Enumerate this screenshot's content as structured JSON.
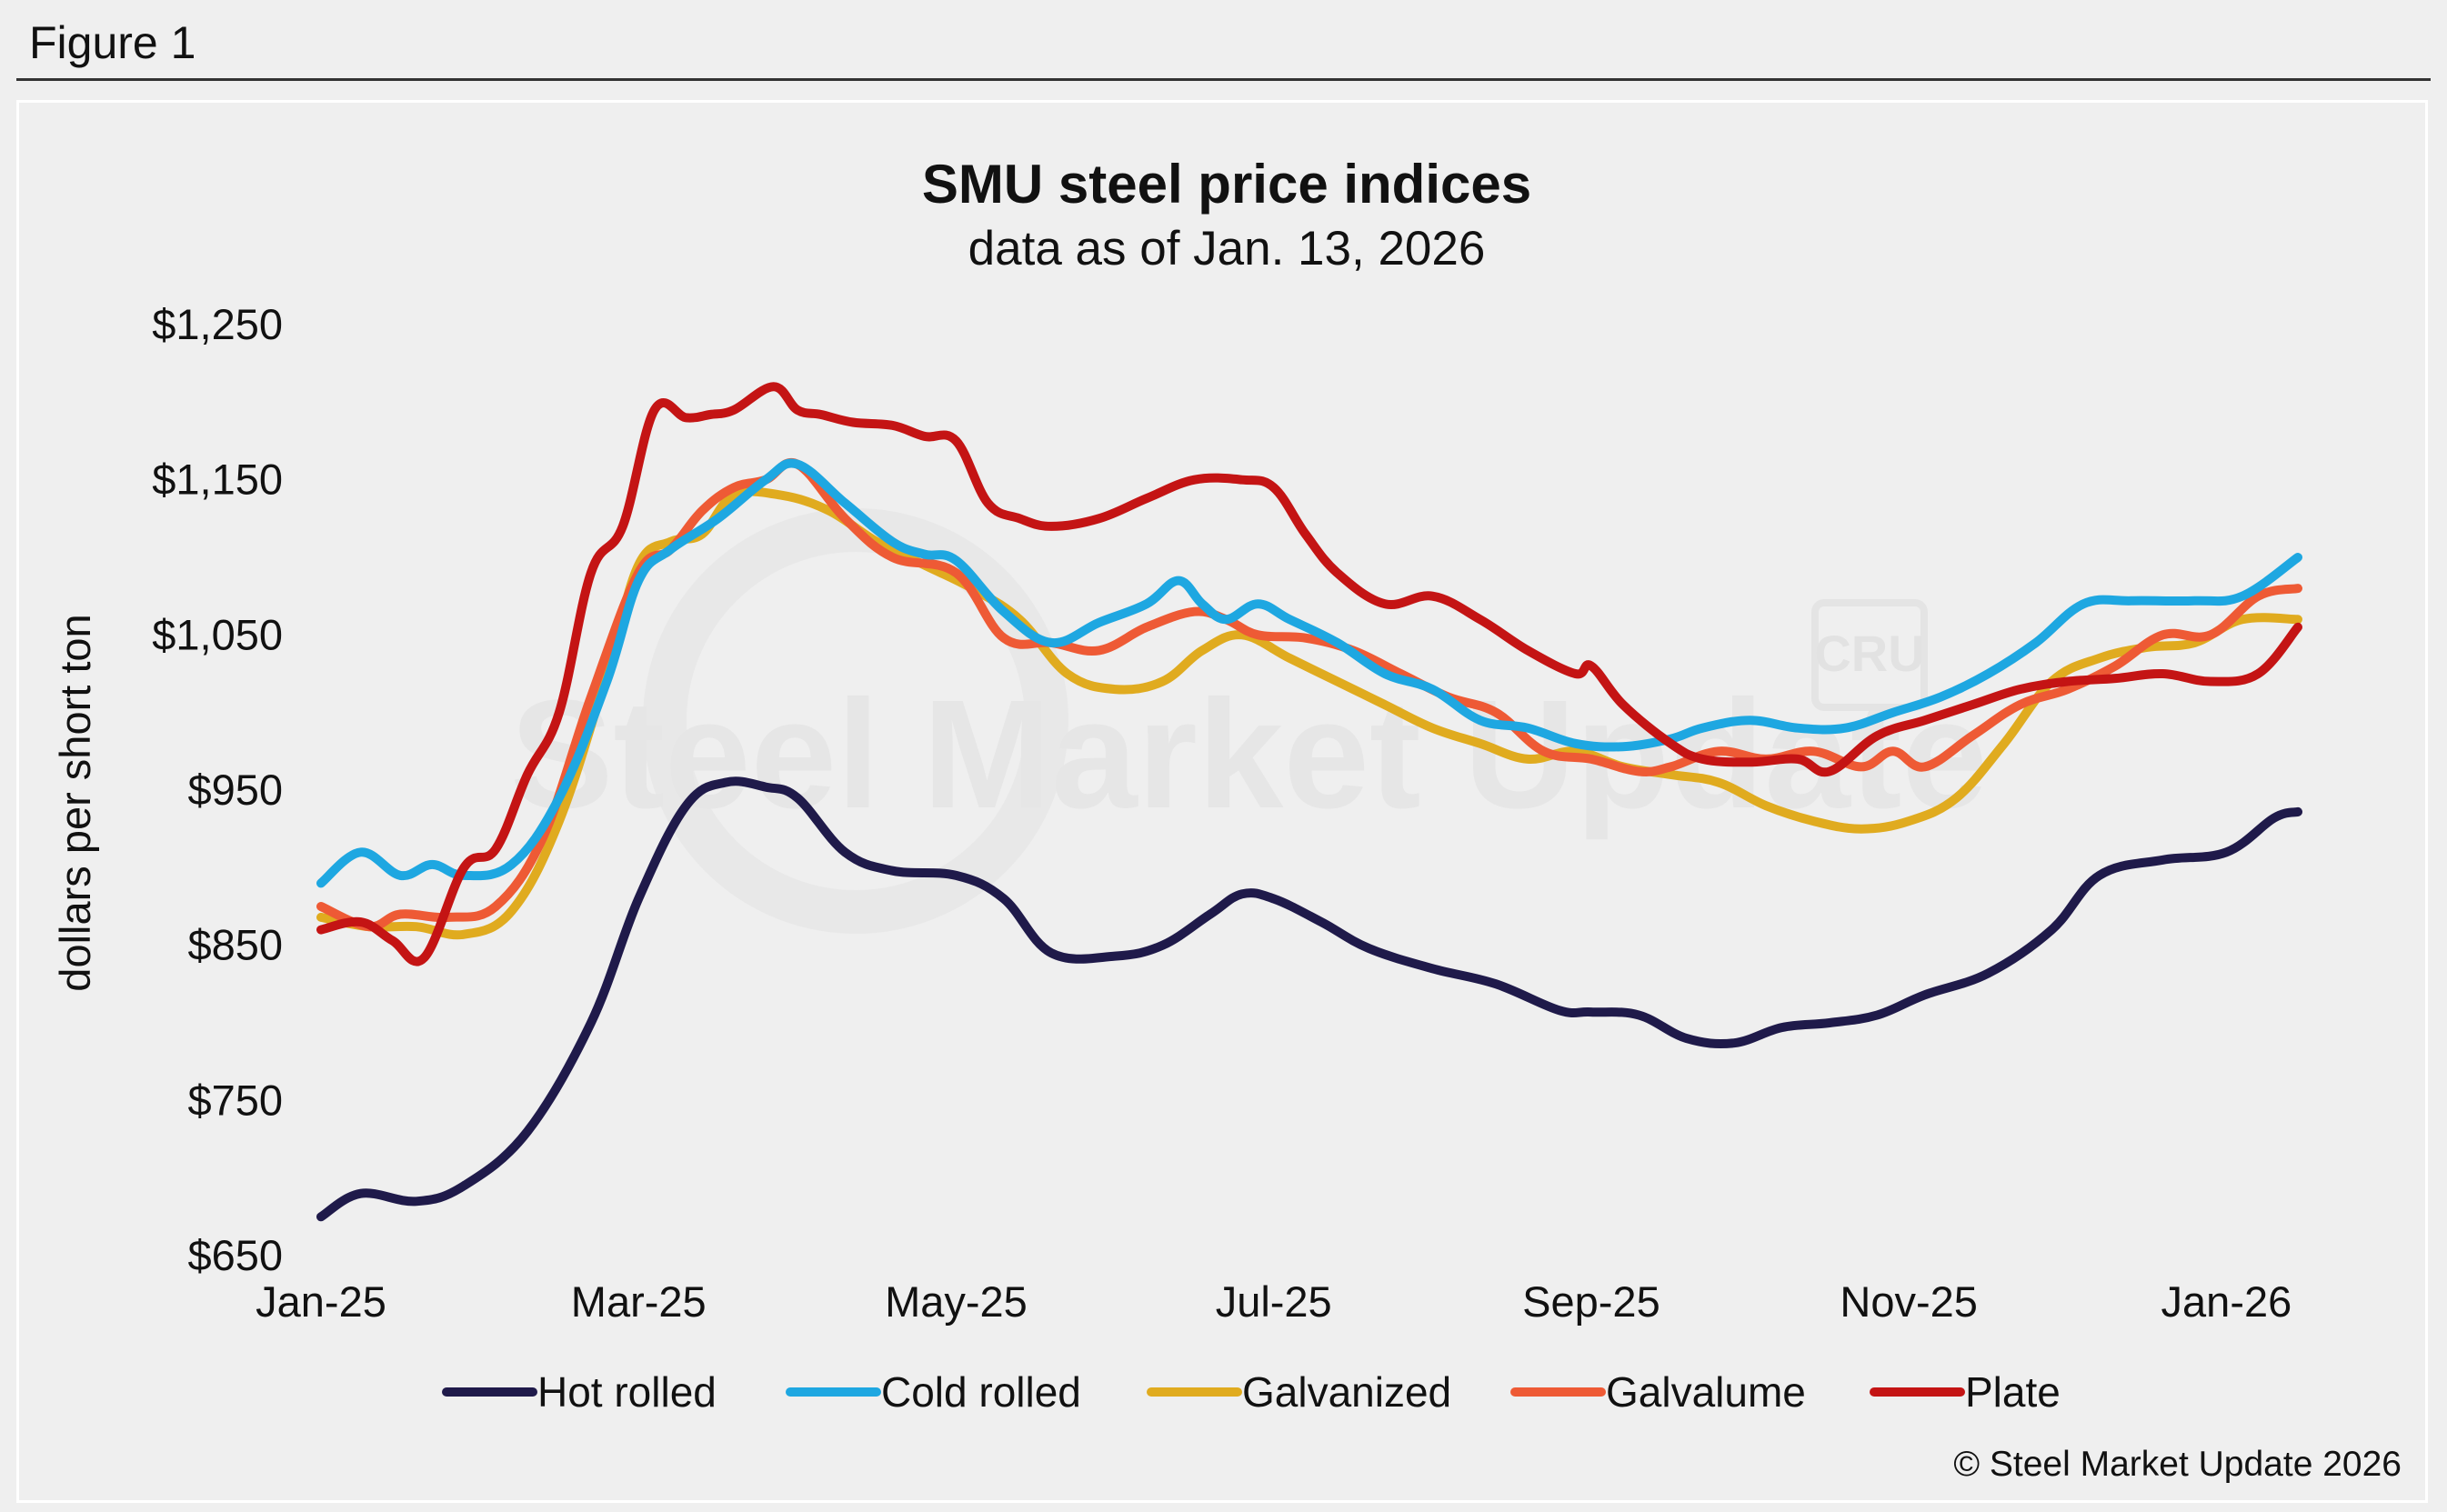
{
  "figure_label": "Figure 1",
  "copyright": "© Steel Market Update 2026",
  "watermark": {
    "brand": "Steel Market Update",
    "logo": "CRU"
  },
  "chart_data": {
    "type": "line",
    "title": "SMU steel price indices",
    "subtitle": "data as of Jan. 13, 2026",
    "ylabel": "dollars per short ton",
    "xlabel": "",
    "ylim": [
      650,
      1250
    ],
    "yticks": [
      650,
      750,
      850,
      950,
      1050,
      1150,
      1250
    ],
    "ytick_labels": [
      "$650",
      "$750",
      "$850",
      "$950",
      "$1,050",
      "$1,150",
      "$1,250"
    ],
    "x_tick_labels": [
      "Jan-25",
      "Mar-25",
      "May-25",
      "Jul-25",
      "Sep-25",
      "Nov-25",
      "Jan-26"
    ],
    "x_tick_positions": [
      0,
      2,
      4,
      6,
      8,
      10,
      12
    ],
    "x_unit": "months since Jan-25",
    "xlim": [
      0,
      12.45
    ],
    "legend_position": "bottom",
    "grid": false,
    "series": [
      {
        "name": "Hot rolled",
        "color": "#1f1a4a",
        "x": [
          0,
          0.25,
          0.6,
          0.9,
          1.3,
          1.7,
          2.0,
          2.3,
          2.55,
          2.8,
          3.0,
          3.3,
          3.6,
          4.0,
          4.3,
          4.6,
          5.0,
          5.3,
          5.6,
          5.8,
          6.0,
          6.3,
          6.6,
          7.0,
          7.4,
          7.8,
          8.0,
          8.3,
          8.6,
          8.9,
          9.2,
          9.5,
          9.8,
          10.1,
          10.5,
          10.9,
          11.2,
          11.6,
          12.0,
          12.3,
          12.45
        ],
        "values": [
          675,
          690,
          685,
          695,
          730,
          800,
          880,
          940,
          955,
          952,
          945,
          910,
          898,
          895,
          880,
          845,
          843,
          850,
          870,
          883,
          880,
          865,
          848,
          835,
          825,
          808,
          807,
          805,
          790,
          787,
          797,
          800,
          805,
          818,
          832,
          860,
          895,
          905,
          910,
          932,
          936
        ]
      },
      {
        "name": "Cold rolled",
        "color": "#1ea7e1",
        "x": [
          0,
          0.25,
          0.5,
          0.7,
          0.9,
          1.2,
          1.5,
          1.8,
          2.0,
          2.2,
          2.5,
          2.8,
          3.0,
          3.3,
          3.6,
          3.8,
          4.0,
          4.3,
          4.6,
          4.9,
          5.2,
          5.4,
          5.55,
          5.7,
          5.9,
          6.1,
          6.4,
          6.7,
          7.0,
          7.3,
          7.6,
          7.9,
          8.2,
          8.5,
          8.7,
          9.0,
          9.3,
          9.6,
          9.9,
          10.2,
          10.5,
          10.8,
          11.1,
          11.4,
          11.8,
          12.1,
          12.45
        ],
        "values": [
          890,
          910,
          895,
          902,
          895,
          902,
          945,
          1020,
          1085,
          1105,
          1125,
          1150,
          1160,
          1135,
          1110,
          1102,
          1098,
          1065,
          1045,
          1058,
          1070,
          1085,
          1070,
          1060,
          1070,
          1060,
          1045,
          1025,
          1015,
          995,
          990,
          980,
          978,
          983,
          990,
          995,
          990,
          990,
          1000,
          1010,
          1025,
          1045,
          1070,
          1072,
          1072,
          1075,
          1100
        ]
      },
      {
        "name": "Galvanized",
        "color": "#e0ab1f",
        "x": [
          0,
          0.3,
          0.6,
          0.9,
          1.2,
          1.5,
          1.8,
          2.0,
          2.2,
          2.4,
          2.6,
          2.9,
          3.2,
          3.5,
          3.8,
          4.1,
          4.4,
          4.7,
          5.0,
          5.3,
          5.55,
          5.8,
          6.1,
          6.4,
          6.7,
          7.0,
          7.3,
          7.6,
          7.9,
          8.2,
          8.5,
          8.8,
          9.1,
          9.4,
          9.7,
          10.0,
          10.3,
          10.6,
          10.9,
          11.2,
          11.5,
          11.8,
          12.1,
          12.45
        ],
        "values": [
          868,
          862,
          862,
          857,
          872,
          930,
          1025,
          1095,
          1110,
          1115,
          1140,
          1140,
          1130,
          1110,
          1095,
          1080,
          1060,
          1025,
          1015,
          1020,
          1040,
          1050,
          1035,
          1020,
          1005,
          990,
          980,
          970,
          975,
          965,
          960,
          955,
          940,
          930,
          925,
          930,
          945,
          980,
          1020,
          1035,
          1042,
          1045,
          1060,
          1060
        ]
      },
      {
        "name": "Galvalume",
        "color": "#ee5a35",
        "x": [
          0,
          0.3,
          0.5,
          0.8,
          1.1,
          1.4,
          1.7,
          2.0,
          2.2,
          2.4,
          2.6,
          2.8,
          3.0,
          3.3,
          3.6,
          4.0,
          4.3,
          4.6,
          4.9,
          5.2,
          5.5,
          5.7,
          5.9,
          6.2,
          6.5,
          6.8,
          7.1,
          7.4,
          7.7,
          8.0,
          8.3,
          8.5,
          8.8,
          9.1,
          9.4,
          9.7,
          9.9,
          10.1,
          10.4,
          10.7,
          11.0,
          11.3,
          11.6,
          11.9,
          12.2,
          12.45
        ],
        "values": [
          875,
          862,
          870,
          868,
          875,
          920,
          1010,
          1090,
          1105,
          1130,
          1145,
          1150,
          1160,
          1125,
          1100,
          1090,
          1048,
          1045,
          1040,
          1055,
          1065,
          1060,
          1050,
          1048,
          1040,
          1025,
          1010,
          1000,
          975,
          970,
          962,
          965,
          975,
          970,
          975,
          965,
          975,
          965,
          985,
          1005,
          1015,
          1030,
          1050,
          1050,
          1075,
          1080
        ]
      },
      {
        "name": "Plate",
        "color": "#c41414",
        "x": [
          0,
          0.25,
          0.45,
          0.65,
          0.9,
          1.1,
          1.3,
          1.5,
          1.7,
          1.9,
          2.1,
          2.3,
          2.45,
          2.6,
          2.85,
          3.0,
          3.15,
          3.35,
          3.6,
          3.8,
          4.0,
          4.2,
          4.4,
          4.6,
          4.9,
          5.2,
          5.5,
          5.8,
          6.0,
          6.2,
          6.4,
          6.7,
          7.0,
          7.3,
          7.6,
          7.9,
          8.0,
          8.2,
          8.5,
          8.7,
          9.0,
          9.3,
          9.5,
          9.8,
          10.1,
          10.4,
          10.7,
          11.0,
          11.3,
          11.6,
          11.9,
          12.2,
          12.45
        ],
        "values": [
          860,
          865,
          853,
          842,
          900,
          912,
          960,
          1000,
          1090,
          1120,
          1195,
          1190,
          1192,
          1195,
          1210,
          1195,
          1192,
          1187,
          1185,
          1178,
          1175,
          1135,
          1125,
          1120,
          1125,
          1138,
          1150,
          1150,
          1145,
          1115,
          1090,
          1070,
          1075,
          1060,
          1040,
          1025,
          1030,
          1005,
          980,
          970,
          968,
          970,
          962,
          985,
          995,
          1005,
          1015,
          1020,
          1022,
          1025,
          1020,
          1025,
          1055
        ]
      }
    ]
  }
}
